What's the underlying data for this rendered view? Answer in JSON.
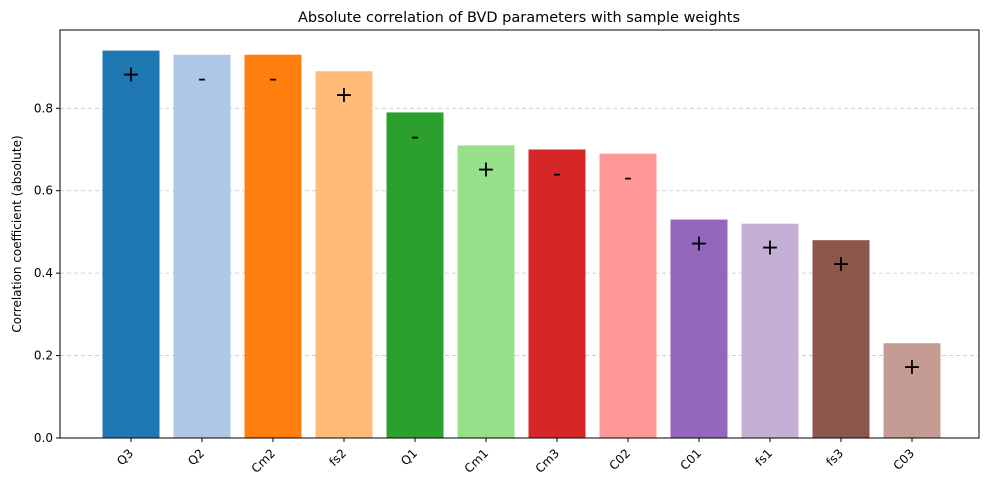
{
  "chart_data": {
    "type": "bar",
    "title": "Absolute correlation of BVD parameters with sample weights",
    "xlabel": "",
    "ylabel": "Correlation coefficient (absolute)",
    "categories": [
      "Q3",
      "Q2",
      "Cm2",
      "fs2",
      "Q1",
      "Cm1",
      "Cm3",
      "C02",
      "C01",
      "fs1",
      "fs3",
      "C03"
    ],
    "values": [
      0.94,
      0.93,
      0.93,
      0.89,
      0.79,
      0.71,
      0.7,
      0.69,
      0.53,
      0.52,
      0.48,
      0.23
    ],
    "signs": [
      "+",
      "-",
      "-",
      "+",
      "-",
      "+",
      "-",
      "-",
      "+",
      "+",
      "+",
      "+"
    ],
    "colors": [
      "#1f77b4",
      "#aec7e8",
      "#ff7f0e",
      "#ffbb78",
      "#2ca02c",
      "#98df8a",
      "#d62728",
      "#ff9896",
      "#9467bd",
      "#c5b0d5",
      "#8c564b",
      "#c49c94"
    ],
    "ylim": [
      0,
      0.99
    ],
    "yticks": [
      0.0,
      0.2,
      0.4,
      0.6,
      0.8
    ],
    "ytick_labels": [
      "0.0",
      "0.2",
      "0.4",
      "0.6",
      "0.8"
    ],
    "grid": "y-dashed",
    "legend": "none"
  }
}
